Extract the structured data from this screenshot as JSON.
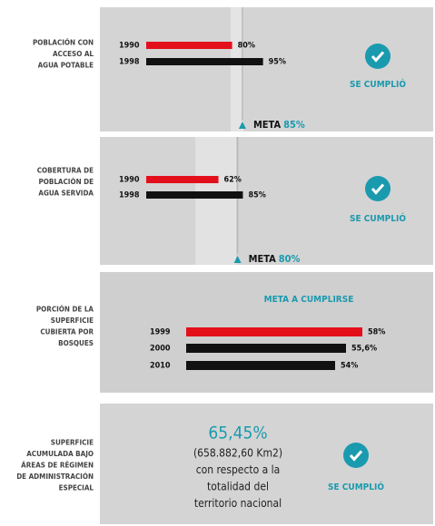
{
  "chart_data": [
    {
      "type": "bar",
      "label_lines": [
        "POBLACIÓN CON",
        "ACCESO AL",
        "AGUA POTABLE"
      ],
      "categories": [
        "1990",
        "1998"
      ],
      "values": [
        80,
        95
      ],
      "value_labels": [
        "80%",
        "95%"
      ],
      "colors": [
        "#e3101b",
        "#111111"
      ],
      "xlim": [
        0,
        100
      ],
      "goal": 85,
      "goal_label": "META",
      "goal_value_label": "85%",
      "status": "SE CUMPLIÓ"
    },
    {
      "type": "bar",
      "label_lines": [
        "COBERTURA DE",
        "POBLACIÓN DE",
        "AGUA SERVIDA"
      ],
      "categories": [
        "1990",
        "1998"
      ],
      "values": [
        62,
        85
      ],
      "value_labels": [
        "62%",
        "85%"
      ],
      "colors": [
        "#e3101b",
        "#111111"
      ],
      "xlim": [
        0,
        100
      ],
      "goal": 80,
      "goal_label": "META",
      "goal_value_label": "80%",
      "status": "SE CUMPLIÓ"
    },
    {
      "type": "bar",
      "label_lines": [
        "PORCIÓN DE LA",
        "SUPERFICIE",
        "CUBIERTA POR",
        "BOSQUES"
      ],
      "title": "META A CUMPLIRSE",
      "categories": [
        "1999",
        "2000",
        "2010"
      ],
      "values": [
        58,
        55.6,
        54
      ],
      "value_labels": [
        "58%",
        "55,6%",
        "54%"
      ],
      "colors": [
        "#e3101b",
        "#111111",
        "#111111"
      ],
      "xlim": [
        0,
        100
      ]
    }
  ],
  "summary": {
    "label_lines": [
      "SUPERFICIE",
      "ACUMULADA BAJO",
      "ÁREAS DE RÉGIMEN",
      "DE ADMINISTRACIÓN",
      "ESPECIAL"
    ],
    "value": "65,45%",
    "text_lines": [
      "(658.882,60 Km2)",
      "con respecto a la",
      "totalidad del",
      "territorio nacional"
    ],
    "status": "SE CUMPLIÓ"
  }
}
